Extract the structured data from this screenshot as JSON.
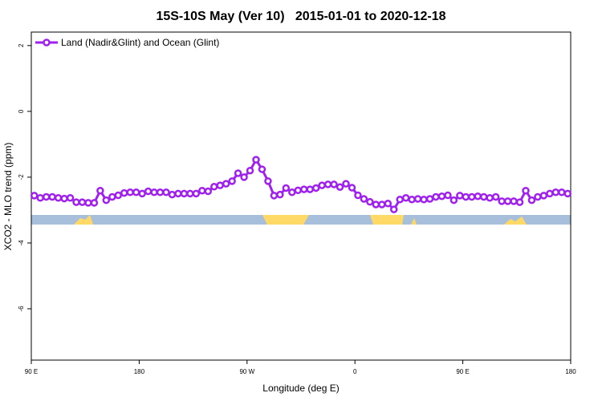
{
  "chart_data": {
    "type": "line",
    "title": "15S-10S May (Ver 10)   2015-01-01 to 2020-12-18",
    "xlabel": "Longitude (deg E)",
    "ylabel": "XCO2 - MLO trend (ppm)",
    "xlim": [
      90,
      540
    ],
    "ylim": [
      -7.56,
      2.41
    ],
    "xticks": [
      {
        "value": 90,
        "label": "90 E"
      },
      180,
      {
        "value": 270,
        "label": "90 W"
      },
      {
        "value": 360,
        "label": "0"
      },
      {
        "value": 450,
        "label": "90 E"
      },
      {
        "value": 540,
        "label": "180"
      }
    ],
    "yticks": [
      2,
      0,
      -2,
      -4,
      -6
    ],
    "legend": "top-left",
    "x": [
      92.5,
      97.5,
      102.5,
      107.5,
      112.5,
      117.5,
      122.5,
      127.5,
      132.5,
      137.5,
      142.5,
      147.5,
      152.5,
      157.5,
      162.5,
      167.5,
      172.5,
      177.5,
      182.5,
      187.5,
      192.5,
      197.5,
      202.5,
      207.5,
      212.5,
      217.5,
      222.5,
      227.5,
      232.5,
      237.5,
      242.5,
      247.5,
      252.5,
      257.5,
      262.5,
      267.5,
      272.5,
      277.5,
      282.5,
      287.5,
      292.5,
      297.5,
      302.5,
      307.5,
      312.5,
      317.5,
      322.5,
      327.5,
      332.5,
      337.5,
      342.5,
      347.5,
      352.5,
      357.5,
      362.5,
      367.5,
      372.5,
      377.5,
      382.5,
      387.5,
      392.5,
      397.5,
      402.5,
      407.5,
      412.5,
      417.5,
      422.5,
      427.5,
      432.5,
      437.5,
      442.5,
      447.5,
      452.5,
      457.5,
      462.5,
      467.5,
      472.5,
      477.5,
      482.5,
      487.5,
      492.5,
      497.5,
      502.5,
      507.5,
      512.5,
      517.5,
      522.5,
      527.5,
      532.5,
      537.5
    ],
    "series": [
      {
        "name": "Land (Nadir&Glint) and Ocean (Glint)",
        "color": "#a020f0",
        "values": [
          -2.56,
          -2.63,
          -2.6,
          -2.6,
          -2.63,
          -2.65,
          -2.63,
          -2.76,
          -2.76,
          -2.78,
          -2.78,
          -2.41,
          -2.7,
          -2.6,
          -2.55,
          -2.48,
          -2.46,
          -2.46,
          -2.5,
          -2.43,
          -2.46,
          -2.46,
          -2.46,
          -2.53,
          -2.5,
          -2.5,
          -2.5,
          -2.5,
          -2.41,
          -2.43,
          -2.29,
          -2.25,
          -2.2,
          -2.12,
          -1.88,
          -2.0,
          -1.8,
          -1.47,
          -1.76,
          -2.12,
          -2.56,
          -2.53,
          -2.33,
          -2.46,
          -2.4,
          -2.37,
          -2.37,
          -2.33,
          -2.25,
          -2.22,
          -2.22,
          -2.3,
          -2.2,
          -2.32,
          -2.55,
          -2.66,
          -2.75,
          -2.83,
          -2.83,
          -2.8,
          -2.98,
          -2.68,
          -2.63,
          -2.68,
          -2.66,
          -2.68,
          -2.66,
          -2.6,
          -2.58,
          -2.55,
          -2.7,
          -2.56,
          -2.6,
          -2.6,
          -2.58,
          -2.6,
          -2.63,
          -2.6,
          -2.73,
          -2.73,
          -2.73,
          -2.76,
          -2.41,
          -2.7,
          -2.6,
          -2.56,
          -2.5,
          -2.46,
          -2.46,
          -2.5
        ]
      }
    ]
  }
}
